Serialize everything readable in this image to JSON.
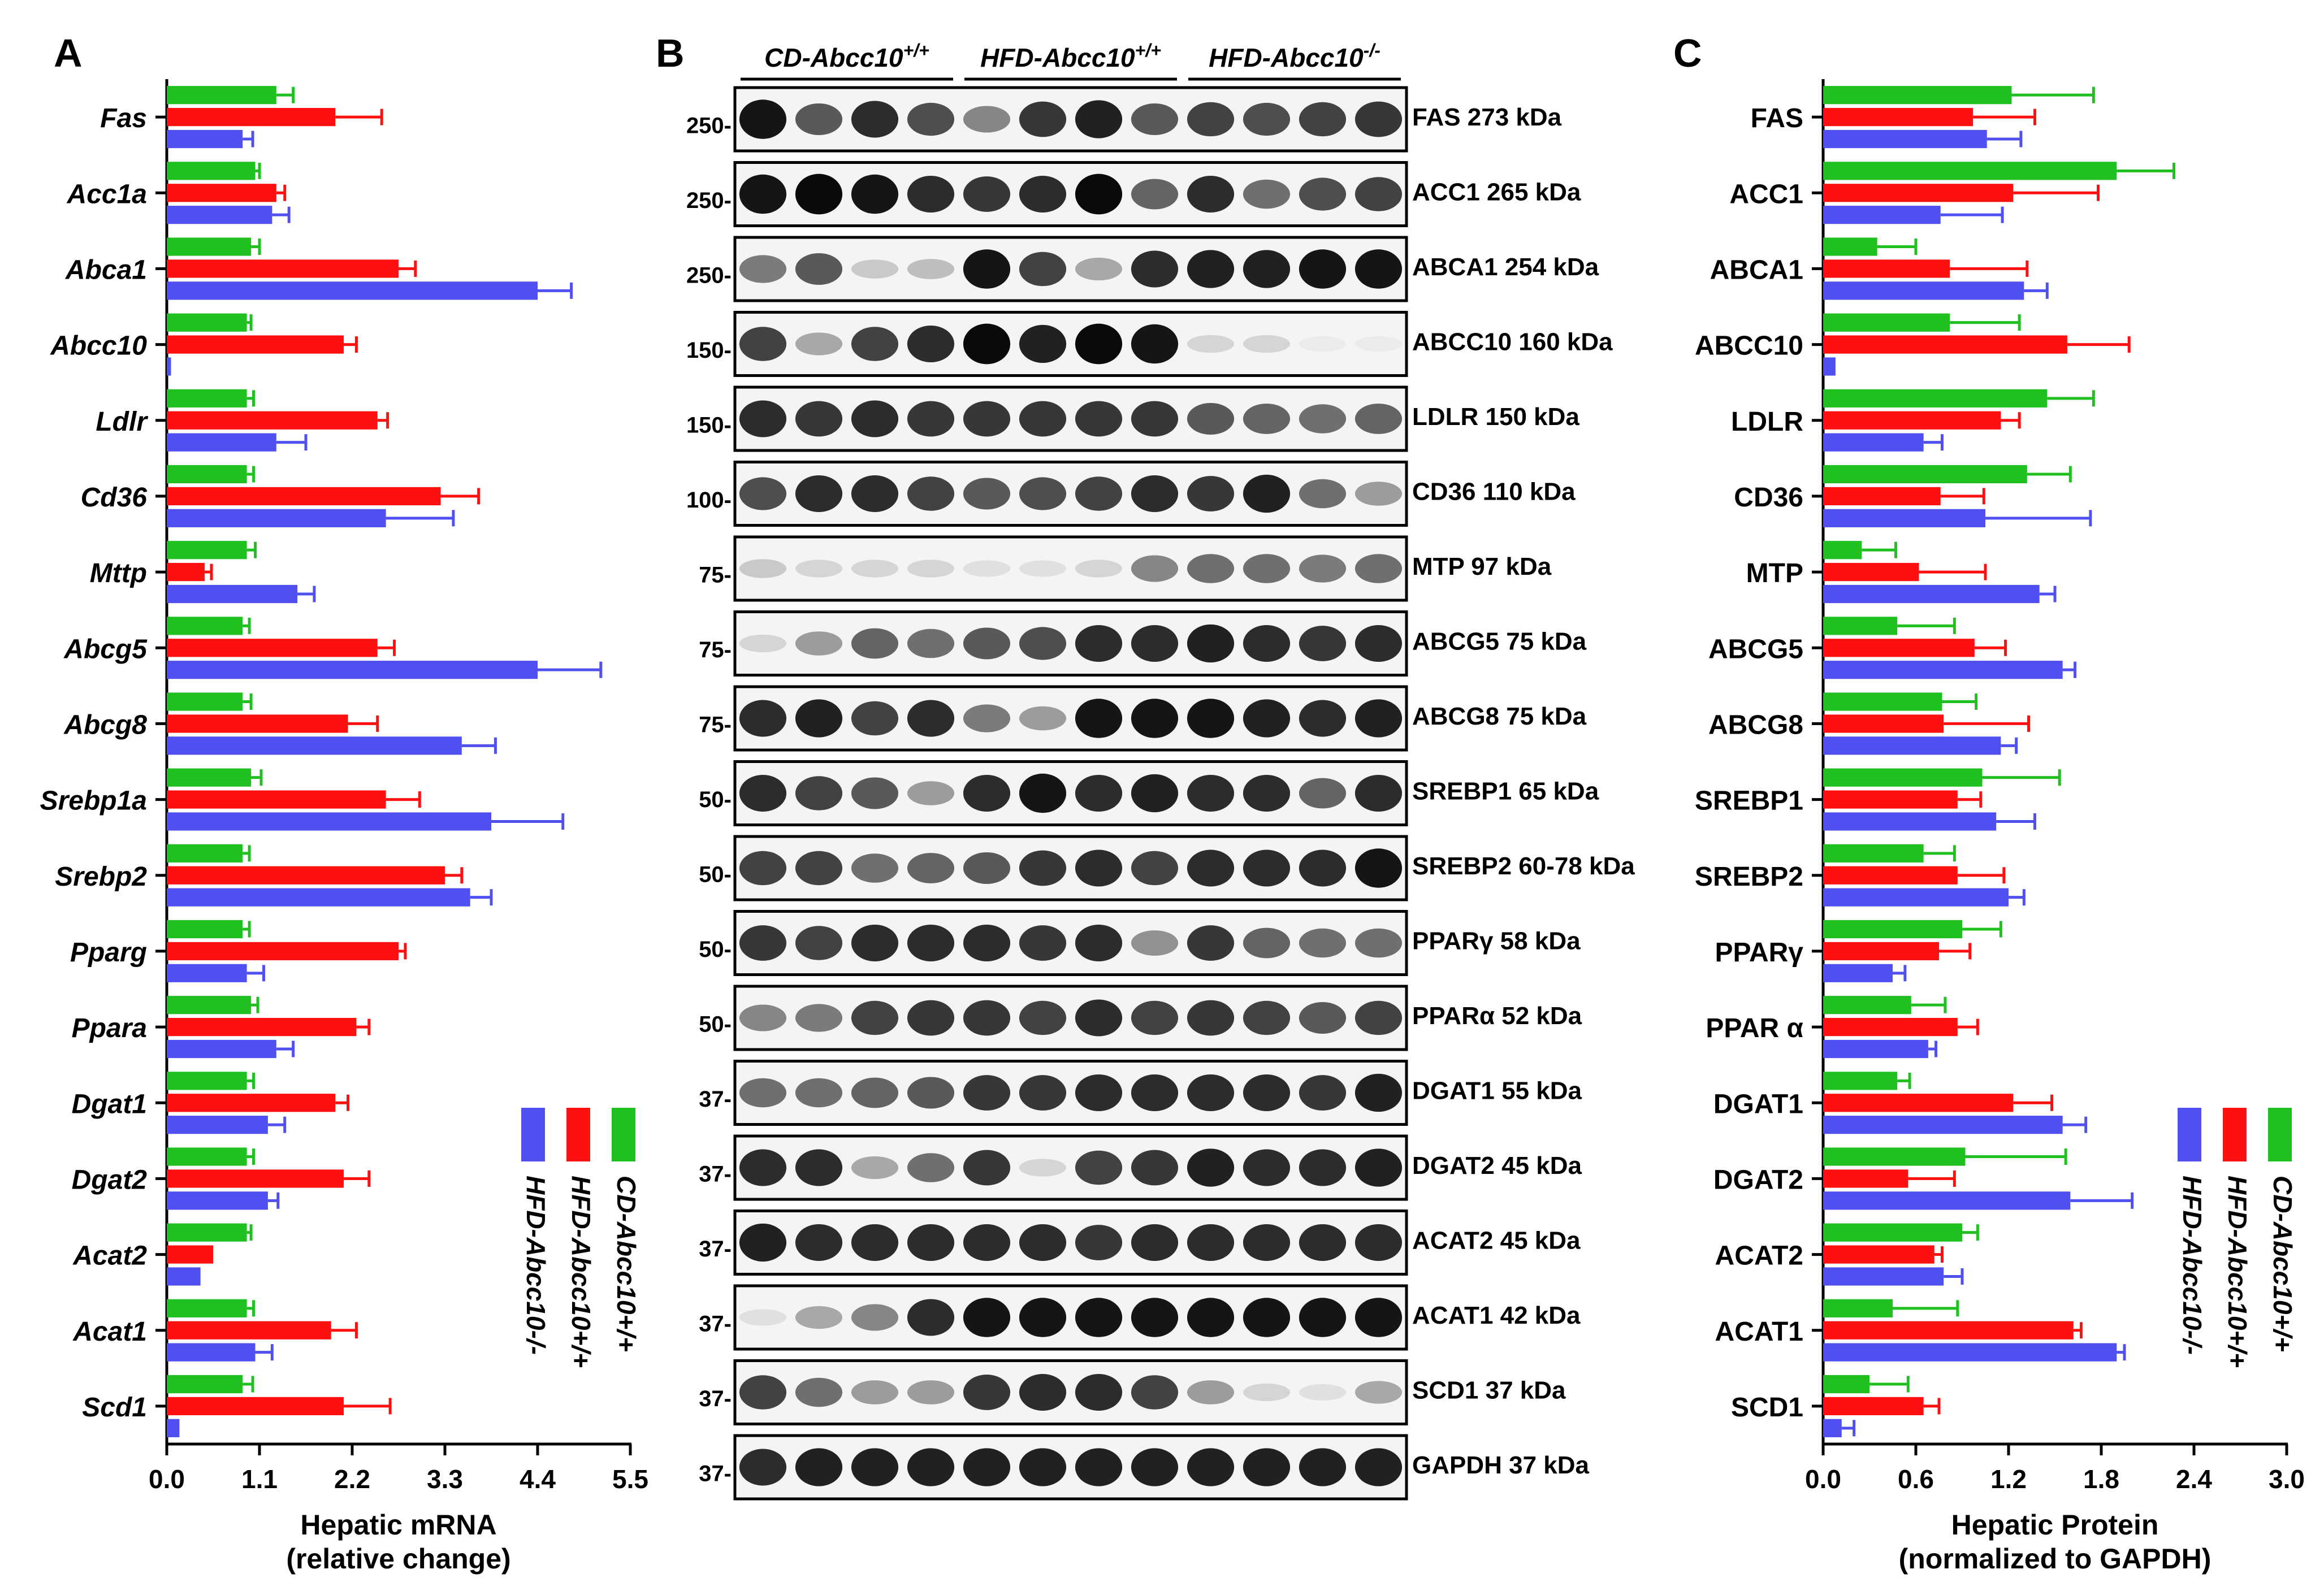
{
  "figure": {
    "panel_a_letter": "A",
    "panel_b_letter": "B",
    "panel_c_letter": "C"
  },
  "colors": {
    "cd": "#20c020",
    "hfd_wt": "#ff1010",
    "hfd_ko": "#5050f0",
    "axis": "#000000",
    "blot_border": "#000000"
  },
  "chart_data": [
    {
      "type": "bar",
      "orientation": "horizontal",
      "panel": "A",
      "xlabel": "Hepatic mRNA",
      "xlabel2": "(relative change)",
      "xlim": [
        0,
        5.5
      ],
      "ticks": [
        "0.0",
        "1.1",
        "2.2",
        "3.3",
        "4.4",
        "5.5"
      ],
      "tick_values": [
        0,
        1.1,
        2.2,
        3.3,
        4.4,
        5.5
      ],
      "categories": [
        "Fas",
        "Acc1a",
        "Abca1",
        "Abcc10",
        "Ldlr",
        "Cd36",
        "Mttp",
        "Abcg5",
        "Abcg8",
        "Srebp1a",
        "Srebp2",
        "Pparg",
        "Ppara",
        "Dgat1",
        "Dgat2",
        "Acat2",
        "Acat1",
        "Scd1"
      ],
      "series": [
        {
          "name": "CD-Abcc10+/+",
          "color": "#20c020",
          "values": [
            1.3,
            1.05,
            1.0,
            0.95,
            0.95,
            0.95,
            0.95,
            0.9,
            0.9,
            1.0,
            0.9,
            0.9,
            1.0,
            0.95,
            0.95,
            0.95,
            0.95,
            0.9
          ],
          "errors": [
            0.2,
            0.05,
            0.1,
            0.05,
            0.08,
            0.08,
            0.1,
            0.08,
            0.1,
            0.12,
            0.08,
            0.08,
            0.08,
            0.08,
            0.08,
            0.05,
            0.08,
            0.12
          ]
        },
        {
          "name": "HFD-Abcc10+/+",
          "color": "#ff1010",
          "values": [
            2.0,
            1.3,
            2.75,
            2.1,
            2.5,
            3.25,
            0.45,
            2.5,
            2.15,
            2.6,
            3.3,
            2.75,
            2.25,
            2.0,
            2.1,
            0.55,
            1.95,
            2.1
          ],
          "errors": [
            0.55,
            0.1,
            0.2,
            0.15,
            0.12,
            0.45,
            0.08,
            0.2,
            0.35,
            0.4,
            0.2,
            0.08,
            0.15,
            0.15,
            0.3,
            0.0,
            0.3,
            0.55
          ]
        },
        {
          "name": "HFD-Abcc10-/-",
          "color": "#5050f0",
          "values": [
            0.9,
            1.25,
            4.4,
            0.05,
            1.3,
            2.6,
            1.55,
            4.4,
            3.5,
            3.85,
            3.6,
            0.95,
            1.3,
            1.2,
            1.2,
            0.4,
            1.05,
            0.15
          ],
          "errors": [
            0.12,
            0.2,
            0.4,
            0.0,
            0.35,
            0.8,
            0.2,
            0.75,
            0.4,
            0.85,
            0.25,
            0.2,
            0.2,
            0.2,
            0.12,
            0.0,
            0.2,
            0.0
          ]
        }
      ],
      "legend": [
        "CD-Abcc10+/+",
        "HFD-Abcc10+/+",
        "HFD-Abcc10-/-"
      ],
      "legend_position": "bottom-right",
      "grid": false
    },
    {
      "type": "bar",
      "orientation": "horizontal",
      "panel": "C",
      "xlabel": "Hepatic Protein",
      "xlabel2": "(normalized to GAPDH)",
      "xlim": [
        0,
        3.0
      ],
      "ticks": [
        "0.0",
        "0.6",
        "1.2",
        "1.8",
        "2.4",
        "3.0"
      ],
      "tick_values": [
        0,
        0.6,
        1.2,
        1.8,
        2.4,
        3.0
      ],
      "categories": [
        "FAS",
        "ACC1",
        "ABCA1",
        "ABCC10",
        "LDLR",
        "CD36",
        "MTP",
        "ABCG5",
        "ABCG8",
        "SREBP1",
        "SREBP2",
        "PPARγ",
        "PPAR α",
        "DGAT1",
        "DGAT2",
        "ACAT2",
        "ACAT1",
        "SCD1"
      ],
      "series": [
        {
          "name": "CD-Abcc10+/+",
          "color": "#20c020",
          "values": [
            1.22,
            1.9,
            0.35,
            0.82,
            1.45,
            1.32,
            0.25,
            0.48,
            0.77,
            1.03,
            0.65,
            0.9,
            0.57,
            0.48,
            0.92,
            0.9,
            0.45,
            0.3
          ],
          "errors": [
            0.53,
            0.37,
            0.25,
            0.45,
            0.3,
            0.28,
            0.22,
            0.37,
            0.22,
            0.5,
            0.2,
            0.25,
            0.22,
            0.08,
            0.65,
            0.1,
            0.42,
            0.25
          ]
        },
        {
          "name": "HFD-Abcc10+/+",
          "color": "#ff1010",
          "values": [
            0.97,
            1.23,
            0.82,
            1.58,
            1.15,
            0.76,
            0.62,
            0.98,
            0.78,
            0.87,
            0.87,
            0.75,
            0.87,
            1.23,
            0.55,
            0.72,
            1.62,
            0.65
          ],
          "errors": [
            0.4,
            0.55,
            0.5,
            0.4,
            0.12,
            0.28,
            0.43,
            0.2,
            0.55,
            0.15,
            0.3,
            0.2,
            0.13,
            0.25,
            0.3,
            0.05,
            0.05,
            0.1
          ]
        },
        {
          "name": "HFD-Abcc10-/-",
          "color": "#5050f0",
          "values": [
            1.06,
            0.76,
            1.3,
            0.08,
            0.65,
            1.05,
            1.4,
            1.55,
            1.15,
            1.12,
            1.2,
            0.45,
            0.68,
            1.55,
            1.6,
            0.78,
            1.9,
            0.12
          ],
          "errors": [
            0.22,
            0.4,
            0.15,
            0.0,
            0.12,
            0.68,
            0.1,
            0.08,
            0.1,
            0.25,
            0.1,
            0.08,
            0.05,
            0.15,
            0.4,
            0.12,
            0.05,
            0.08
          ]
        }
      ],
      "legend": [
        "CD-Abcc10+/+",
        "HFD-Abcc10+/+",
        "HFD-Abcc10-/-"
      ],
      "legend_position": "bottom-right",
      "grid": false
    }
  ],
  "blot": {
    "groups": [
      {
        "name": "CD-Abcc10",
        "sup": "+/+"
      },
      {
        "name": "HFD-Abcc10",
        "sup": "+/+"
      },
      {
        "name": "HFD-Abcc10",
        "sup": "-/-"
      }
    ],
    "lanes_per_group": 4,
    "rows": [
      {
        "protein": "FAS 273 kDa",
        "marker": "250-"
      },
      {
        "protein": "ACC1 265 kDa",
        "marker": "250-"
      },
      {
        "protein": "ABCA1 254 kDa",
        "marker": "250-"
      },
      {
        "protein": "ABCC10 160 kDa",
        "marker": "150-"
      },
      {
        "protein": "LDLR 150 kDa",
        "marker": "150-"
      },
      {
        "protein": "CD36 110 kDa",
        "marker": "100-"
      },
      {
        "protein": "MTP 97 kDa",
        "marker": "75-"
      },
      {
        "protein": "ABCG5 75 kDa",
        "marker": "75-"
      },
      {
        "protein": "ABCG8 75 kDa",
        "marker": "75-"
      },
      {
        "protein": "SREBP1 65 kDa",
        "marker": "50-"
      },
      {
        "protein": "SREBP2 60-78 kDa",
        "marker": "50-"
      },
      {
        "protein": "PPARγ 58 kDa",
        "marker": "50-"
      },
      {
        "protein": "PPARα 52 kDa",
        "marker": "50-"
      },
      {
        "protein": "DGAT1 55 kDa",
        "marker": "37-"
      },
      {
        "protein": "DGAT2 45 kDa",
        "marker": "37-"
      },
      {
        "protein": "ACAT2 45 kDa",
        "marker": "37-"
      },
      {
        "protein": "ACAT1 42 kDa",
        "marker": "37-"
      },
      {
        "protein": "SCD1 37 kDa",
        "marker": "37-"
      },
      {
        "protein": "GAPDH 37 kDa",
        "marker": "37-"
      }
    ],
    "band_intensity": [
      [
        0.95,
        0.65,
        0.85,
        0.7,
        0.45,
        0.8,
        0.9,
        0.65,
        0.75,
        0.7,
        0.75,
        0.8
      ],
      [
        0.95,
        1.0,
        0.95,
        0.85,
        0.8,
        0.85,
        1.0,
        0.6,
        0.85,
        0.55,
        0.7,
        0.75
      ],
      [
        0.5,
        0.65,
        0.15,
        0.2,
        0.95,
        0.75,
        0.3,
        0.85,
        0.9,
        0.9,
        0.95,
        0.95
      ],
      [
        0.75,
        0.3,
        0.75,
        0.85,
        1.0,
        0.9,
        1.0,
        0.95,
        0.1,
        0.1,
        0.0,
        0.0
      ],
      [
        0.85,
        0.8,
        0.85,
        0.8,
        0.8,
        0.8,
        0.8,
        0.8,
        0.65,
        0.6,
        0.55,
        0.6
      ],
      [
        0.7,
        0.85,
        0.85,
        0.75,
        0.65,
        0.7,
        0.75,
        0.85,
        0.8,
        0.9,
        0.55,
        0.35
      ],
      [
        0.15,
        0.1,
        0.1,
        0.1,
        0.05,
        0.05,
        0.1,
        0.45,
        0.55,
        0.55,
        0.5,
        0.55
      ],
      [
        0.1,
        0.35,
        0.6,
        0.55,
        0.65,
        0.7,
        0.85,
        0.85,
        0.9,
        0.85,
        0.8,
        0.85
      ],
      [
        0.85,
        0.9,
        0.75,
        0.85,
        0.5,
        0.35,
        0.95,
        0.95,
        0.95,
        0.9,
        0.85,
        0.9
      ],
      [
        0.85,
        0.75,
        0.65,
        0.35,
        0.85,
        0.95,
        0.85,
        0.9,
        0.85,
        0.85,
        0.6,
        0.85
      ],
      [
        0.75,
        0.75,
        0.55,
        0.6,
        0.65,
        0.8,
        0.85,
        0.75,
        0.85,
        0.85,
        0.85,
        0.95
      ],
      [
        0.8,
        0.75,
        0.85,
        0.85,
        0.85,
        0.8,
        0.85,
        0.4,
        0.8,
        0.6,
        0.55,
        0.55
      ],
      [
        0.45,
        0.5,
        0.75,
        0.8,
        0.8,
        0.75,
        0.85,
        0.75,
        0.8,
        0.75,
        0.65,
        0.75
      ],
      [
        0.55,
        0.55,
        0.6,
        0.65,
        0.8,
        0.8,
        0.85,
        0.85,
        0.85,
        0.85,
        0.8,
        0.9
      ],
      [
        0.85,
        0.85,
        0.3,
        0.55,
        0.8,
        0.1,
        0.75,
        0.8,
        0.9,
        0.85,
        0.85,
        0.9
      ],
      [
        0.9,
        0.85,
        0.85,
        0.85,
        0.85,
        0.85,
        0.8,
        0.85,
        0.85,
        0.85,
        0.85,
        0.85
      ],
      [
        0.05,
        0.3,
        0.45,
        0.85,
        0.95,
        0.95,
        0.95,
        0.95,
        0.95,
        0.95,
        0.95,
        0.95
      ],
      [
        0.75,
        0.55,
        0.35,
        0.35,
        0.8,
        0.85,
        0.85,
        0.75,
        0.35,
        0.1,
        0.05,
        0.3
      ],
      [
        0.85,
        0.9,
        0.9,
        0.9,
        0.9,
        0.9,
        0.9,
        0.9,
        0.9,
        0.9,
        0.9,
        0.9
      ]
    ]
  }
}
